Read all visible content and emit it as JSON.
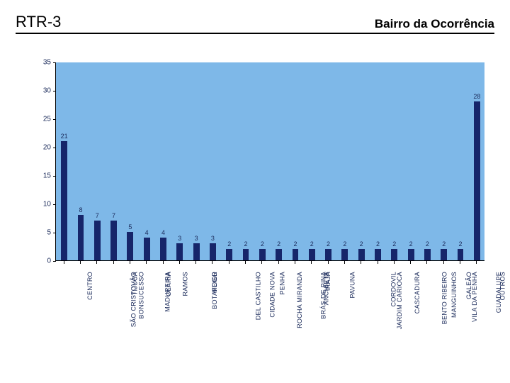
{
  "header": {
    "title_left": "RTR-3",
    "title_right": "Bairro da Ocorrência"
  },
  "chart": {
    "type": "bar",
    "background_color": "#7eb8e8",
    "bar_color": "#16256a",
    "text_color": "#1a2a5a",
    "axis_color": "#000000",
    "page_bg": "#ffffff",
    "label_fontsize": 9,
    "axis_fontsize": 10,
    "ylim": [
      0,
      35
    ],
    "ytick_step": 5,
    "bar_width_ratio": 0.38,
    "categories": [
      "CENTRO",
      "SÃO CRISTOVÃO",
      "BONSUCESSO",
      "TIJUCA",
      "MADUREIRA",
      "OLARIA",
      "RAMOS",
      "BOTAFOGO",
      "MEIER",
      "DEL CASTILHO",
      "CIDADE NOVA",
      "ROCHA MIRANDA",
      "PENHA",
      "BRÁS DE PINA",
      "ANCHIETA",
      "IRAJÁ",
      "PAVUNA",
      "JARDIM CARIOCA",
      "CORDOVIL",
      "CASCADURA",
      "BENTO RIBEIRO",
      "MANGUINHOS",
      "VILA DA PENHA",
      "GALEÃO",
      "GUADALUPE",
      "OUTROS"
    ],
    "values": [
      21,
      8,
      7,
      7,
      5,
      4,
      4,
      3,
      3,
      3,
      2,
      2,
      2,
      2,
      2,
      2,
      2,
      2,
      2,
      2,
      2,
      2,
      2,
      2,
      2,
      28
    ]
  }
}
